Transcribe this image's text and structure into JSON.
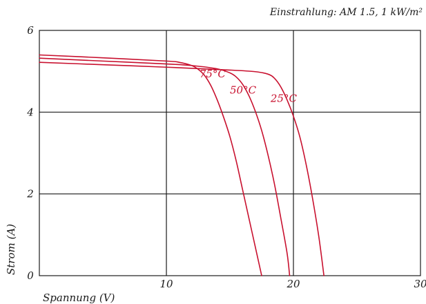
{
  "chart_data": {
    "type": "line",
    "title": "Einstrahlung: AM 1.5, 1 kW/m²",
    "xlabel": "Spannung (V)",
    "ylabel": "Strom (A)",
    "xlim": [
      0,
      30
    ],
    "ylim": [
      0,
      6
    ],
    "x_ticks": [
      "10",
      "20",
      "30"
    ],
    "y_ticks": [
      "0",
      "2",
      "4",
      "6"
    ],
    "grid": true,
    "line_color": "#c8102e",
    "series": [
      {
        "name": "25°C",
        "points": [
          [
            0,
            5.22
          ],
          [
            5,
            5.16
          ],
          [
            10,
            5.1
          ],
          [
            15,
            5.03
          ],
          [
            17,
            4.99
          ],
          [
            18,
            4.93
          ],
          [
            18.5,
            4.83
          ],
          [
            19,
            4.62
          ],
          [
            19.5,
            4.3
          ],
          [
            20,
            3.9
          ],
          [
            20.5,
            3.4
          ],
          [
            21,
            2.72
          ],
          [
            21.5,
            1.9
          ],
          [
            22,
            0.95
          ],
          [
            22.4,
            0
          ]
        ]
      },
      {
        "name": "50°C",
        "points": [
          [
            0,
            5.32
          ],
          [
            5,
            5.25
          ],
          [
            10,
            5.18
          ],
          [
            12,
            5.14
          ],
          [
            14,
            5.06
          ],
          [
            15,
            4.96
          ],
          [
            15.5,
            4.86
          ],
          [
            16,
            4.68
          ],
          [
            16.5,
            4.4
          ],
          [
            17,
            4.02
          ],
          [
            17.5,
            3.55
          ],
          [
            18,
            2.95
          ],
          [
            18.5,
            2.25
          ],
          [
            19,
            1.42
          ],
          [
            19.5,
            0.55
          ],
          [
            19.7,
            0
          ]
        ]
      },
      {
        "name": "75°C",
        "points": [
          [
            0,
            5.4
          ],
          [
            5,
            5.33
          ],
          [
            10,
            5.25
          ],
          [
            11,
            5.22
          ],
          [
            12,
            5.14
          ],
          [
            12.5,
            5.05
          ],
          [
            13,
            4.9
          ],
          [
            13.5,
            4.65
          ],
          [
            14,
            4.3
          ],
          [
            14.5,
            3.88
          ],
          [
            15,
            3.4
          ],
          [
            15.5,
            2.8
          ],
          [
            16,
            2.1
          ],
          [
            16.5,
            1.4
          ],
          [
            17,
            0.7
          ],
          [
            17.5,
            0
          ]
        ]
      }
    ],
    "labels": [
      {
        "text": "75°C",
        "x": 12.6,
        "y": 4.85
      },
      {
        "text": "50°C",
        "x": 15.0,
        "y": 4.45
      },
      {
        "text": "25°C",
        "x": 18.2,
        "y": 4.25
      }
    ]
  }
}
